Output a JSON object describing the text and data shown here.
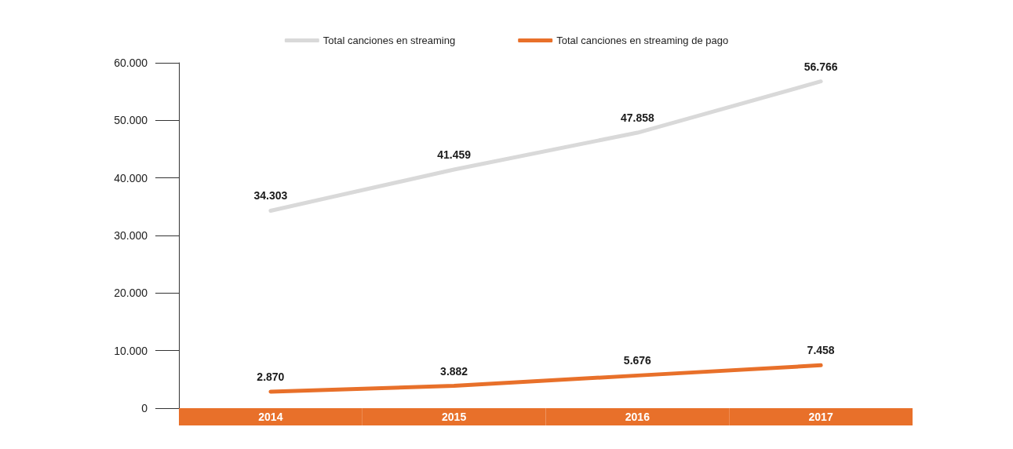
{
  "chart_data": {
    "type": "line",
    "categories": [
      "2014",
      "2015",
      "2016",
      "2017"
    ],
    "series": [
      {
        "name": "Total canciones en streaming",
        "color": "#d9d9d9",
        "values": [
          34303,
          41459,
          47858,
          56766
        ],
        "value_labels": [
          "34.303",
          "41.459",
          "47.858",
          "56.766"
        ]
      },
      {
        "name": "Total canciones en streaming de pago",
        "color": "#e8702a",
        "values": [
          2870,
          3882,
          5676,
          7458
        ],
        "value_labels": [
          "2.870",
          "3.882",
          "5.676",
          "7.458"
        ]
      }
    ],
    "ylim": [
      0,
      60000
    ],
    "yticks": [
      {
        "value": 0,
        "label": "0"
      },
      {
        "value": 10000,
        "label": "10.000"
      },
      {
        "value": 20000,
        "label": "20.000"
      },
      {
        "value": 30000,
        "label": "30.000"
      },
      {
        "value": 40000,
        "label": "40.000"
      },
      {
        "value": 50000,
        "label": "50.000"
      },
      {
        "value": 60000,
        "label": "60.000"
      }
    ],
    "grid": false,
    "legend": "top",
    "marker": "none",
    "line_style": "solid"
  }
}
